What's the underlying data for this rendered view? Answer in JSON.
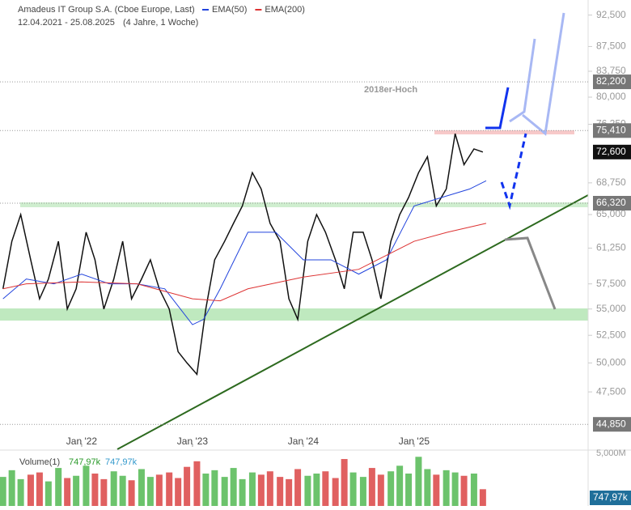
{
  "chart_data": {
    "type": "line",
    "title": "Amadeus IT Group S.A. (Cboe Europe, Last)",
    "date_range": "12.04.2021 - 25.08.2025",
    "period": "(4 Jahre, 1 Woche)",
    "annotation": "2018er-Hoch",
    "log_scale": true,
    "xlim": [
      2021.263,
      2026.57
    ],
    "xticks": [
      {
        "value": 2022,
        "label": "Jan '22"
      },
      {
        "value": 2023,
        "label": "Jan '23"
      },
      {
        "value": 2024,
        "label": "Jan '24"
      },
      {
        "value": 2025,
        "label": "Jan '25"
      }
    ],
    "ylim": [
      43100,
      95000
    ],
    "yticks": [
      {
        "value": 92500,
        "label": "92,500"
      },
      {
        "value": 87500,
        "label": "87,500"
      },
      {
        "value": 83750,
        "label": "83,750"
      },
      {
        "value": 80000,
        "label": "80,000"
      },
      {
        "value": 76250,
        "label": "76,250"
      },
      {
        "value": 68750,
        "label": "68,750"
      },
      {
        "value": 65000,
        "label": "65,000"
      },
      {
        "value": 61250,
        "label": "61,250"
      },
      {
        "value": 57500,
        "label": "57,500"
      },
      {
        "value": 55000,
        "label": "55,000"
      },
      {
        "value": 52500,
        "label": "52,500"
      },
      {
        "value": 50000,
        "label": "50,000"
      },
      {
        "value": 47500,
        "label": "47,500"
      }
    ],
    "levels": [
      {
        "value": 82200,
        "label": "82,200",
        "color": "#777"
      },
      {
        "value": 75410,
        "label": "75,410",
        "color": "#777"
      },
      {
        "value": 72600,
        "label": "72,600",
        "color": "#111"
      },
      {
        "value": 66320,
        "label": "66,320",
        "color": "#777"
      },
      {
        "value": 44850,
        "label": "44,850",
        "color": "#777"
      }
    ],
    "price": {
      "color": "#111",
      "x": [
        2021.29,
        2021.37,
        2021.45,
        2021.54,
        2021.62,
        2021.7,
        2021.79,
        2021.87,
        2021.95,
        2022.04,
        2022.12,
        2022.2,
        2022.29,
        2022.37,
        2022.45,
        2022.54,
        2022.62,
        2022.7,
        2022.79,
        2022.87,
        2022.95,
        2023.04,
        2023.12,
        2023.2,
        2023.29,
        2023.37,
        2023.45,
        2023.54,
        2023.62,
        2023.7,
        2023.79,
        2023.87,
        2023.95,
        2024.04,
        2024.12,
        2024.2,
        2024.29,
        2024.37,
        2024.45,
        2024.54,
        2024.62,
        2024.7,
        2024.79,
        2024.87,
        2024.95,
        2025.04,
        2025.12,
        2025.2,
        2025.29,
        2025.37,
        2025.45,
        2025.54,
        2025.62
      ],
      "values": [
        57000,
        62000,
        65000,
        60000,
        56000,
        58000,
        62000,
        55000,
        57000,
        63000,
        60000,
        55000,
        58000,
        62000,
        56000,
        58000,
        60000,
        57000,
        55000,
        51000,
        50000,
        49000,
        55000,
        60000,
        62000,
        64000,
        66000,
        70000,
        68000,
        64000,
        62000,
        56000,
        54000,
        62000,
        65000,
        63000,
        60000,
        57000,
        63000,
        63000,
        60000,
        56000,
        62000,
        65000,
        67000,
        70000,
        72000,
        66000,
        68000,
        75000,
        71000,
        73000,
        72600
      ]
    },
    "series": [
      {
        "name": "EMA(50)",
        "color": "#2244dd",
        "x": [
          2021.29,
          2021.5,
          2021.75,
          2022.0,
          2022.25,
          2022.5,
          2022.75,
          2023.0,
          2023.1,
          2023.25,
          2023.5,
          2023.75,
          2024.0,
          2024.25,
          2024.5,
          2024.75,
          2025.0,
          2025.25,
          2025.5,
          2025.65
        ],
        "values": [
          56000,
          58000,
          57500,
          58500,
          57500,
          57500,
          57000,
          53500,
          54000,
          57000,
          63000,
          63000,
          60000,
          60000,
          58500,
          60000,
          66000,
          67000,
          68000,
          69000
        ]
      },
      {
        "name": "EMA(200)",
        "color": "#dd3333",
        "x": [
          2021.29,
          2021.5,
          2022.0,
          2022.5,
          2023.0,
          2023.25,
          2023.5,
          2024.0,
          2024.5,
          2025.0,
          2025.3,
          2025.65
        ],
        "values": [
          57000,
          57500,
          57700,
          57500,
          56000,
          55800,
          57000,
          58200,
          59000,
          62000,
          63000,
          64000
        ]
      }
    ],
    "volume": {
      "title": "Volume(1)",
      "value_label": "747,97k",
      "value_label_2": "747,97k",
      "axis_label": "5,000M",
      "last_label": "747,97k",
      "ylim": [
        0,
        5000
      ],
      "values": [
        2600,
        3200,
        2400,
        2800,
        3000,
        2200,
        3400,
        2500,
        2700,
        3600,
        2900,
        2400,
        3100,
        2700,
        2300,
        3300,
        2600,
        2800,
        3000,
        2500,
        3500,
        4000,
        2900,
        3200,
        2600,
        3400,
        2400,
        3000,
        2800,
        3100,
        2600,
        2400,
        3300,
        2700,
        2900,
        3100,
        2500,
        4200,
        3000,
        2600,
        3400,
        2800,
        3100,
        3600,
        2900,
        4400,
        3300,
        2800,
        3200,
        3000,
        2700,
        2900,
        1500
      ]
    }
  }
}
